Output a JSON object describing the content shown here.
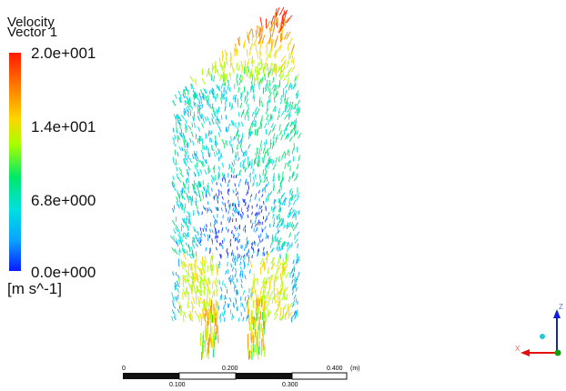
{
  "legend": {
    "title_line1": "Velocity",
    "title_line2": "Vector 1",
    "max_label": "2.0e+001",
    "mid_upper_label": "1.4e+001",
    "mid_lower_label": "6.8e+000",
    "min_label": "0.0e+000",
    "unit": "[m s^-1]"
  },
  "scale_bar": {
    "top_labels": [
      "0",
      "0.200",
      "0.400"
    ],
    "unit": "(m)",
    "bottom_labels": [
      "0.100",
      "0.300"
    ]
  },
  "axes_triad": {
    "x_label": "X",
    "z_label": "Z",
    "x_color": "#e01010",
    "z_color": "#1020e0",
    "y_color": "#10a010"
  }
}
